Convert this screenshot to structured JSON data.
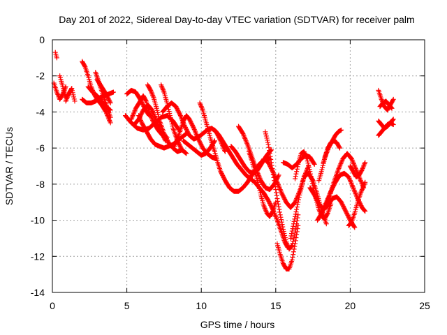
{
  "chart_data": {
    "type": "scatter",
    "title": "Day 201 of 2022, Sidereal Day-to-day VTEC variation (SDTVAR) for receiver palm",
    "xlabel": "GPS time / hours",
    "ylabel": "SDTVAR / TECUs",
    "xlim": [
      0,
      25
    ],
    "ylim": [
      -14,
      0
    ],
    "x_ticks": [
      0,
      5,
      10,
      15,
      20,
      25
    ],
    "y_ticks": [
      0,
      -2,
      -4,
      -6,
      -8,
      -10,
      -12,
      -14
    ],
    "grid": true,
    "marker": "plus",
    "color": "#ff0000",
    "series": [
      {
        "name": "t1",
        "x": [
          0.2,
          0.3
        ],
        "y": [
          -0.7,
          -1.0
        ]
      },
      {
        "name": "t2",
        "x": [
          0.1,
          0.3,
          0.5,
          0.7,
          0.9
        ],
        "y": [
          -2.4,
          -2.9,
          -3.3,
          -3.0,
          -2.6
        ]
      },
      {
        "name": "t3",
        "x": [
          0.5,
          0.7,
          0.9,
          1.1,
          1.3
        ],
        "y": [
          -2.0,
          -2.6,
          -3.2,
          -3.0,
          -2.7
        ]
      },
      {
        "name": "t4",
        "x": [
          0.9,
          1.1,
          1.3,
          1.5
        ],
        "y": [
          -3.4,
          -3.0,
          -2.7,
          -3.4
        ]
      },
      {
        "name": "t5",
        "x": [
          2.0,
          2.2,
          2.4,
          2.6,
          2.8,
          3.0,
          3.3,
          3.6,
          3.9
        ],
        "y": [
          -1.2,
          -1.5,
          -2.0,
          -2.6,
          -3.0,
          -3.3,
          -3.6,
          -4.0,
          -4.6
        ]
      },
      {
        "name": "t6",
        "x": [
          2.0,
          2.3,
          2.6,
          2.9,
          3.2,
          3.5,
          3.8,
          4.1
        ],
        "y": [
          -3.3,
          -3.5,
          -3.5,
          -3.4,
          -3.2,
          -3.1,
          -3.0,
          -2.9
        ]
      },
      {
        "name": "t7",
        "x": [
          2.4,
          2.7,
          3.0,
          3.3,
          3.6,
          3.9
        ],
        "y": [
          -2.6,
          -2.9,
          -3.1,
          -3.4,
          -3.7,
          -3.9
        ]
      },
      {
        "name": "t8",
        "x": [
          2.9,
          3.1,
          3.3,
          3.5,
          3.7,
          3.9
        ],
        "y": [
          -1.8,
          -2.3,
          -2.8,
          -3.3,
          -3.8,
          -4.3
        ]
      },
      {
        "name": "t9",
        "x": [
          3.0,
          3.3,
          3.6,
          3.9
        ],
        "y": [
          -2.2,
          -2.6,
          -3.0,
          -3.5
        ]
      },
      {
        "name": "t10",
        "x": [
          5.0,
          5.3,
          5.6,
          5.9,
          6.2,
          6.5
        ],
        "y": [
          -3.0,
          -2.8,
          -2.9,
          -3.3,
          -3.8,
          -4.2
        ]
      },
      {
        "name": "t11",
        "x": [
          4.9,
          5.3,
          5.7,
          6.1,
          6.5,
          6.9,
          7.3,
          7.7,
          8.1,
          8.5
        ],
        "y": [
          -4.2,
          -4.6,
          -4.9,
          -5.0,
          -4.9,
          -4.6,
          -4.3,
          -4.2,
          -4.5,
          -5.0
        ]
      },
      {
        "name": "t12",
        "x": [
          5.3,
          5.6,
          5.9,
          6.1,
          6.3,
          6.5,
          6.8,
          7.1,
          7.4,
          7.7
        ],
        "y": [
          -4.4,
          -3.8,
          -3.4,
          -3.1,
          -3.4,
          -4.0,
          -4.6,
          -5.0,
          -5.3,
          -5.4
        ]
      },
      {
        "name": "t13",
        "x": [
          5.5,
          5.8,
          6.1,
          6.4,
          6.7,
          7.0,
          7.3,
          7.6
        ],
        "y": [
          -4.7,
          -4.4,
          -3.9,
          -3.6,
          -3.9,
          -4.5,
          -5.1,
          -5.6
        ]
      },
      {
        "name": "t14",
        "x": [
          5.8,
          6.0,
          6.2,
          6.4,
          6.6,
          6.9,
          7.2,
          7.5,
          7.8,
          8.1,
          8.4,
          8.7,
          9.0
        ],
        "y": [
          -4.2,
          -4.6,
          -4.9,
          -5.2,
          -5.5,
          -5.8,
          -5.9,
          -6.0,
          -5.9,
          -5.8,
          -5.6,
          -5.4,
          -5.2
        ]
      },
      {
        "name": "t15",
        "x": [
          6.4,
          6.6,
          6.8,
          7.0,
          7.2,
          7.5,
          7.8,
          8.1,
          8.4,
          8.7
        ],
        "y": [
          -2.5,
          -2.8,
          -3.2,
          -3.8,
          -4.5,
          -5.2,
          -5.7,
          -6.0,
          -6.2,
          -6.1
        ]
      },
      {
        "name": "t16",
        "x": [
          7.3,
          7.5,
          7.7,
          7.9,
          8.1,
          8.4,
          8.7,
          9.0
        ],
        "y": [
          -2.5,
          -2.9,
          -3.5,
          -4.2,
          -4.9,
          -5.6,
          -6.1,
          -6.3
        ]
      },
      {
        "name": "t17",
        "x": [
          7.4,
          7.7,
          8.0,
          8.3,
          8.6,
          8.9,
          9.2,
          9.5,
          9.8,
          10.1,
          10.4,
          10.7,
          11.0,
          11.3,
          11.6
        ],
        "y": [
          -4.0,
          -3.7,
          -3.5,
          -3.7,
          -4.2,
          -4.8,
          -5.3,
          -5.5,
          -5.4,
          -5.2,
          -5.0,
          -4.9,
          -5.1,
          -5.6,
          -6.2
        ]
      },
      {
        "name": "t18",
        "x": [
          8.2,
          8.4,
          8.6,
          8.8,
          9.0,
          9.2,
          9.5,
          9.8,
          10.1,
          10.4,
          10.7,
          11.0
        ],
        "y": [
          -5.9,
          -5.5,
          -5.0,
          -4.5,
          -4.2,
          -4.4,
          -4.9,
          -5.5,
          -6.0,
          -6.3,
          -6.5,
          -6.6
        ]
      },
      {
        "name": "t19",
        "x": [
          8.8,
          9.1,
          9.4,
          9.7,
          10.0,
          10.3,
          10.6,
          10.9
        ],
        "y": [
          -5.6,
          -5.8,
          -6.0,
          -6.2,
          -6.4,
          -6.3,
          -6.0,
          -5.6
        ]
      },
      {
        "name": "t20",
        "x": [
          9.9,
          10.1,
          10.3,
          10.5,
          10.7,
          10.9,
          11.1,
          11.3,
          11.6,
          11.9,
          12.2,
          12.5,
          12.8,
          13.1,
          13.4,
          13.7,
          14.0,
          14.3,
          14.6
        ],
        "y": [
          -3.5,
          -3.9,
          -4.5,
          -5.1,
          -5.7,
          -6.2,
          -6.8,
          -7.3,
          -7.8,
          -8.2,
          -8.4,
          -8.4,
          -8.2,
          -7.9,
          -7.5,
          -7.1,
          -6.8,
          -6.6,
          -6.6
        ]
      },
      {
        "name": "t21",
        "x": [
          10.9,
          11.2,
          11.5,
          11.8,
          12.1,
          12.4,
          12.7,
          13.0,
          13.3,
          13.6,
          13.9,
          14.2,
          14.5,
          14.8,
          15.1,
          15.4,
          15.6,
          15.8
        ],
        "y": [
          -5.0,
          -5.3,
          -5.7,
          -6.1,
          -6.5,
          -6.9,
          -7.2,
          -7.5,
          -7.7,
          -7.9,
          -8.2,
          -8.5,
          -8.9,
          -9.4,
          -10.0,
          -10.7,
          -11.2,
          -11.5
        ]
      },
      {
        "name": "t22",
        "x": [
          12.0,
          12.3,
          12.6,
          12.9,
          13.2,
          13.5,
          13.8,
          14.1,
          14.4,
          14.7
        ],
        "y": [
          -5.9,
          -6.2,
          -6.6,
          -7.0,
          -7.3,
          -7.4,
          -7.2,
          -6.8,
          -6.4,
          -6.1
        ]
      },
      {
        "name": "t23",
        "x": [
          12.5,
          12.8,
          13.1,
          13.4,
          13.7,
          14.0,
          14.3,
          14.6,
          14.9,
          15.2
        ],
        "y": [
          -4.8,
          -5.2,
          -5.8,
          -6.5,
          -7.2,
          -7.8,
          -8.2,
          -8.3,
          -8.0,
          -7.5
        ]
      },
      {
        "name": "t24",
        "x": [
          13.2,
          13.4,
          13.6,
          13.8,
          14.0,
          14.2,
          14.4,
          14.6,
          14.8,
          15.0
        ],
        "y": [
          -6.2,
          -6.7,
          -7.3,
          -7.9,
          -8.6,
          -9.2,
          -9.6,
          -9.8,
          -9.5,
          -9.0
        ]
      },
      {
        "name": "t25",
        "x": [
          14.3,
          14.5,
          14.7,
          14.9,
          15.1,
          15.3,
          15.5,
          15.7,
          15.9,
          16.1,
          16.3,
          16.5
        ],
        "y": [
          -5.1,
          -5.8,
          -6.8,
          -7.8,
          -8.8,
          -9.7,
          -10.5,
          -11.2,
          -11.6,
          -11.4,
          -10.7,
          -9.7
        ]
      },
      {
        "name": "t26",
        "x": [
          15.1,
          15.3,
          15.5,
          15.7,
          15.9,
          16.1,
          16.3,
          16.5
        ],
        "y": [
          -11.3,
          -11.9,
          -12.4,
          -12.7,
          -12.7,
          -12.2,
          -11.3,
          -10.3
        ]
      },
      {
        "name": "t27",
        "x": [
          13.9,
          14.2,
          14.5,
          14.8,
          15.1,
          15.4,
          15.7,
          16.0,
          16.3,
          16.6,
          16.9,
          17.2
        ],
        "y": [
          -7.0,
          -6.6,
          -6.8,
          -7.3,
          -7.9,
          -8.5,
          -9.0,
          -9.3,
          -9.0,
          -8.4,
          -7.6,
          -7.0
        ]
      },
      {
        "name": "t28",
        "x": [
          15.5,
          15.8,
          16.1,
          16.4,
          16.7,
          17.0,
          17.3,
          17.6
        ],
        "y": [
          -6.8,
          -6.9,
          -7.1,
          -6.9,
          -6.6,
          -6.4,
          -6.5,
          -6.9
        ]
      },
      {
        "name": "t29",
        "x": [
          16.0,
          16.3,
          16.6,
          16.9,
          17.2,
          17.5,
          17.8,
          18.1,
          18.4
        ],
        "y": [
          -11.0,
          -9.8,
          -8.6,
          -7.6,
          -7.4,
          -7.8,
          -8.6,
          -9.5,
          -10.2
        ]
      },
      {
        "name": "t30",
        "x": [
          16.3,
          16.5,
          16.7,
          16.9,
          17.1,
          17.3,
          17.5,
          17.7,
          17.9,
          18.1,
          18.3,
          18.5,
          18.7
        ],
        "y": [
          -7.7,
          -6.9,
          -6.3,
          -6.2,
          -6.6,
          -7.3,
          -8.1,
          -8.8,
          -9.4,
          -9.8,
          -9.9,
          -9.6,
          -9.1
        ]
      },
      {
        "name": "t31",
        "x": [
          17.3,
          17.6,
          17.9,
          18.2,
          18.5,
          18.8,
          19.1,
          19.4,
          19.7,
          20.0,
          20.3
        ],
        "y": [
          -8.2,
          -8.6,
          -9.1,
          -9.4,
          -9.2,
          -8.8,
          -8.7,
          -9.0,
          -9.5,
          -10.0,
          -10.4
        ]
      },
      {
        "name": "t32",
        "x": [
          17.9,
          18.1,
          18.3,
          18.5,
          18.7,
          18.9,
          19.1,
          19.3
        ],
        "y": [
          -7.8,
          -7.2,
          -6.5,
          -6.0,
          -5.7,
          -5.6,
          -5.7,
          -6.0
        ]
      },
      {
        "name": "t33",
        "x": [
          17.8,
          18.1,
          18.4,
          18.7,
          19.0,
          19.3,
          19.6,
          19.9,
          20.2,
          20.5,
          20.8,
          21.0
        ],
        "y": [
          -10.0,
          -9.6,
          -9.0,
          -8.4,
          -7.9,
          -7.5,
          -7.4,
          -7.6,
          -8.2,
          -8.8,
          -9.3,
          -9.5
        ]
      },
      {
        "name": "t34",
        "x": [
          18.3,
          18.6,
          18.9,
          19.2,
          19.5,
          19.8,
          20.1,
          20.4,
          20.7,
          20.9
        ],
        "y": [
          -9.3,
          -8.7,
          -7.9,
          -7.2,
          -6.6,
          -6.3,
          -6.6,
          -7.2,
          -7.8,
          -8.2
        ]
      },
      {
        "name": "t35",
        "x": [
          18.2,
          18.4,
          18.6,
          18.8,
          19.0,
          19.2,
          19.4
        ],
        "y": [
          -6.8,
          -6.3,
          -5.9,
          -5.6,
          -5.3,
          -5.1,
          -5.0
        ]
      },
      {
        "name": "t36",
        "x": [
          20.0,
          20.2,
          20.4,
          20.6,
          20.8,
          21.0
        ],
        "y": [
          -7.0,
          -7.3,
          -7.6,
          -7.5,
          -7.2,
          -6.8
        ]
      },
      {
        "name": "t37",
        "x": [
          19.9,
          20.1,
          20.3,
          20.5,
          20.7,
          20.9,
          21.0
        ],
        "y": [
          -10.3,
          -10.1,
          -9.6,
          -9.0,
          -8.5,
          -8.1,
          -7.9
        ]
      },
      {
        "name": "t38",
        "x": [
          21.9,
          22.1,
          22.3,
          22.5,
          22.7,
          22.9
        ],
        "y": [
          -2.8,
          -3.3,
          -3.7,
          -3.9,
          -3.6,
          -3.3
        ]
      },
      {
        "name": "t39",
        "x": [
          21.9,
          22.1,
          22.3,
          22.5,
          22.7,
          22.9
        ],
        "y": [
          -4.5,
          -4.7,
          -4.9,
          -4.8,
          -4.6,
          -4.4
        ]
      },
      {
        "name": "t40",
        "x": [
          21.9,
          22.1,
          22.3,
          22.5,
          22.7,
          22.9
        ],
        "y": [
          -5.3,
          -5.1,
          -4.9,
          -4.7,
          -4.6,
          -4.7
        ]
      },
      {
        "name": "t41",
        "x": [
          22.0,
          22.2,
          22.4,
          22.6,
          22.8
        ],
        "y": [
          -3.7,
          -3.5,
          -3.4,
          -3.6,
          -3.8
        ]
      }
    ]
  }
}
